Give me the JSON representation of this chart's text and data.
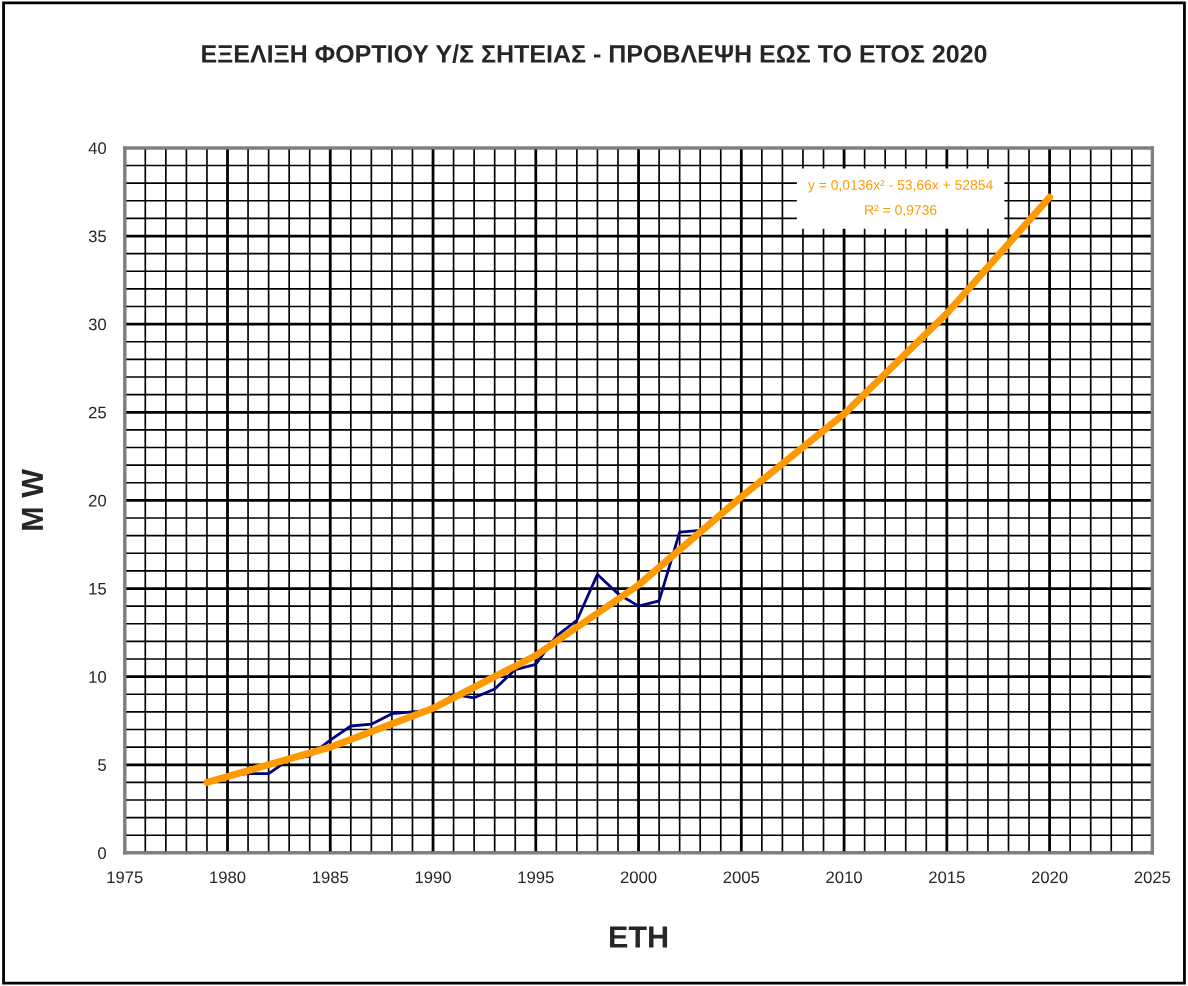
{
  "chart_data": {
    "type": "line",
    "title": "ΕΞΕΛΙΞΗ ΦΟΡΤΙΟΥ Υ/Σ ΣΗΤΕΙΑΣ - ΠΡΟΒΛΕΨΗ ΕΩΣ ΤΟ ΕΤΟΣ 2020",
    "xlabel": "ΕΤΗ",
    "ylabel": "M W",
    "series": [
      {
        "color": "#000080",
        "x": [
          1979,
          1980,
          1981,
          1982,
          1983,
          1984,
          1985,
          1986,
          1987,
          1988,
          1989,
          1990,
          1991,
          1992,
          1993,
          1994,
          1995,
          1996,
          1997,
          1998,
          1999,
          2000,
          2001,
          2002,
          2003
        ],
        "values": [
          4.0,
          4.4,
          4.5,
          4.5,
          5.3,
          5.5,
          6.4,
          7.2,
          7.3,
          7.9,
          8.0,
          8.1,
          9.0,
          8.8,
          9.3,
          10.4,
          10.7,
          12.3,
          13.2,
          15.8,
          14.7,
          14.0,
          14.3,
          18.2,
          18.3
        ]
      },
      {
        "color": "#ff9900",
        "x": [
          1979,
          1985,
          1990,
          1995,
          2000,
          2005,
          2010,
          2015,
          2020
        ],
        "values": [
          4.0,
          6.0,
          8.2,
          11.2,
          15.2,
          20.2,
          24.9,
          30.6,
          37.2
        ]
      }
    ],
    "annotations": [
      "y = 0,0136x² - 53,66x + 52854",
      "R² = 0,9736"
    ],
    "xlim": [
      1975,
      2025
    ],
    "xticks": [
      1975,
      1980,
      1985,
      1990,
      1995,
      2000,
      2005,
      2010,
      2015,
      2020,
      2025
    ],
    "ylim": [
      0,
      40
    ],
    "yticks": [
      0,
      5,
      10,
      15,
      20,
      25,
      30,
      35,
      40
    ],
    "grid": true,
    "legend": false
  }
}
